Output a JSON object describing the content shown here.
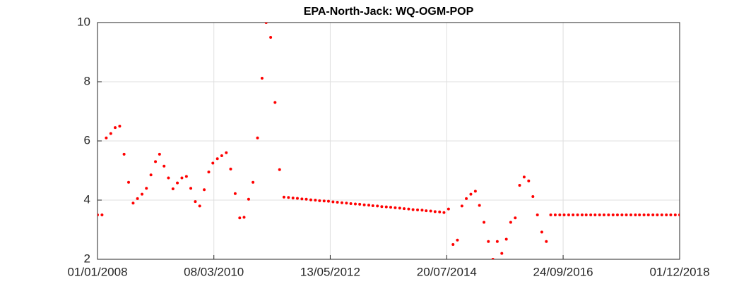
{
  "chart_data": {
    "type": "scatter",
    "title": "EPA-North-Jack: WQ-OGM-POP",
    "x": [
      "01/01/2008",
      "01/02/2008",
      "01/03/2008",
      "01/04/2008",
      "01/05/2008",
      "01/06/2008",
      "01/07/2008",
      "01/08/2008",
      "01/09/2008",
      "01/10/2008",
      "01/11/2008",
      "01/12/2008",
      "01/01/2009",
      "01/02/2009",
      "01/03/2009",
      "01/04/2009",
      "01/05/2009",
      "01/06/2009",
      "01/07/2009",
      "01/08/2009",
      "01/09/2009",
      "01/10/2009",
      "01/11/2009",
      "01/12/2009",
      "01/01/2010",
      "01/02/2010",
      "01/03/2010",
      "01/04/2010",
      "01/05/2010",
      "01/06/2010",
      "01/07/2010",
      "01/08/2010",
      "01/09/2010",
      "01/10/2010",
      "01/11/2010",
      "01/12/2010",
      "01/01/2011",
      "01/02/2011",
      "01/03/2011",
      "01/04/2011",
      "01/05/2011",
      "01/06/2011",
      "01/07/2011",
      "01/08/2011",
      "01/09/2011",
      "01/10/2011",
      "01/11/2011",
      "01/12/2011",
      "01/01/2012",
      "01/02/2012",
      "01/03/2012",
      "01/04/2012",
      "01/05/2012",
      "01/06/2012",
      "01/07/2012",
      "01/08/2012",
      "01/09/2012",
      "01/10/2012",
      "01/11/2012",
      "01/12/2012",
      "01/01/2013",
      "01/02/2013",
      "01/03/2013",
      "01/04/2013",
      "01/05/2013",
      "01/06/2013",
      "01/07/2013",
      "01/08/2013",
      "01/09/2013",
      "01/10/2013",
      "01/11/2013",
      "01/12/2013",
      "01/01/2014",
      "01/02/2014",
      "01/03/2014",
      "01/04/2014",
      "01/05/2014",
      "01/06/2014",
      "01/07/2014",
      "01/08/2014",
      "01/09/2014",
      "01/10/2014",
      "01/11/2014",
      "01/12/2014",
      "01/01/2015",
      "01/02/2015",
      "01/03/2015",
      "01/04/2015",
      "01/05/2015",
      "01/06/2015",
      "01/07/2015",
      "01/08/2015",
      "01/09/2015",
      "01/10/2015",
      "01/11/2015",
      "01/12/2015",
      "01/01/2016",
      "01/02/2016",
      "01/03/2016",
      "01/04/2016",
      "01/05/2016",
      "01/06/2016",
      "01/07/2016",
      "01/08/2016",
      "01/09/2016",
      "01/10/2016",
      "01/11/2016",
      "01/12/2016",
      "01/01/2017",
      "01/02/2017",
      "01/03/2017",
      "01/04/2017",
      "01/05/2017",
      "01/06/2017",
      "01/07/2017",
      "01/08/2017",
      "01/09/2017",
      "01/10/2017",
      "01/11/2017",
      "01/12/2017",
      "01/01/2018",
      "01/02/2018",
      "01/03/2018",
      "01/04/2018",
      "01/05/2018",
      "01/06/2018",
      "01/07/2018",
      "01/08/2018",
      "01/09/2018",
      "01/10/2018",
      "01/11/2018",
      "01/12/2018"
    ],
    "values": [
      3.5,
      3.5,
      6.1,
      6.25,
      6.45,
      6.5,
      5.55,
      4.6,
      3.9,
      4.05,
      4.2,
      4.4,
      4.85,
      5.3,
      5.55,
      5.15,
      4.75,
      4.38,
      4.58,
      4.75,
      4.8,
      4.4,
      3.95,
      3.8,
      4.35,
      4.95,
      5.25,
      5.4,
      5.5,
      5.6,
      5.05,
      4.22,
      3.4,
      3.42,
      4.03,
      4.6,
      6.1,
      8.12,
      10.0,
      9.5,
      7.3,
      5.03,
      4.1,
      4.09,
      4.07,
      4.06,
      4.04,
      4.03,
      4.01,
      4.0,
      3.98,
      3.97,
      3.96,
      3.94,
      3.93,
      3.91,
      3.9,
      3.88,
      3.87,
      3.86,
      3.84,
      3.83,
      3.81,
      3.8,
      3.78,
      3.77,
      3.76,
      3.74,
      3.73,
      3.71,
      3.7,
      3.68,
      3.67,
      3.66,
      3.64,
      3.63,
      3.61,
      3.6,
      3.58,
      3.7,
      2.5,
      2.65,
      3.8,
      4.05,
      4.2,
      4.3,
      3.82,
      3.25,
      2.6,
      2.0,
      2.6,
      2.2,
      2.68,
      3.25,
      3.4,
      4.5,
      4.78,
      4.65,
      4.12,
      3.5,
      2.92,
      2.6,
      3.5,
      3.5,
      3.5,
      3.5,
      3.5,
      3.5,
      3.5,
      3.5,
      3.5,
      3.5,
      3.5,
      3.5,
      3.5,
      3.5,
      3.5,
      3.5,
      3.5,
      3.5,
      3.5,
      3.5,
      3.5,
      3.5,
      3.5,
      3.5,
      3.5,
      3.5,
      3.5,
      3.5,
      3.5,
      3.5
    ],
    "color": "#ff0000",
    "xlim": [
      "01/01/2008",
      "01/12/2018"
    ],
    "xticks": [
      "01/01/2008",
      "08/03/2010",
      "13/05/2012",
      "20/07/2014",
      "24/09/2016",
      "01/12/2018"
    ],
    "ylim": [
      2,
      10
    ],
    "yticks": [
      2,
      4,
      6,
      8,
      10
    ],
    "grid": true
  }
}
